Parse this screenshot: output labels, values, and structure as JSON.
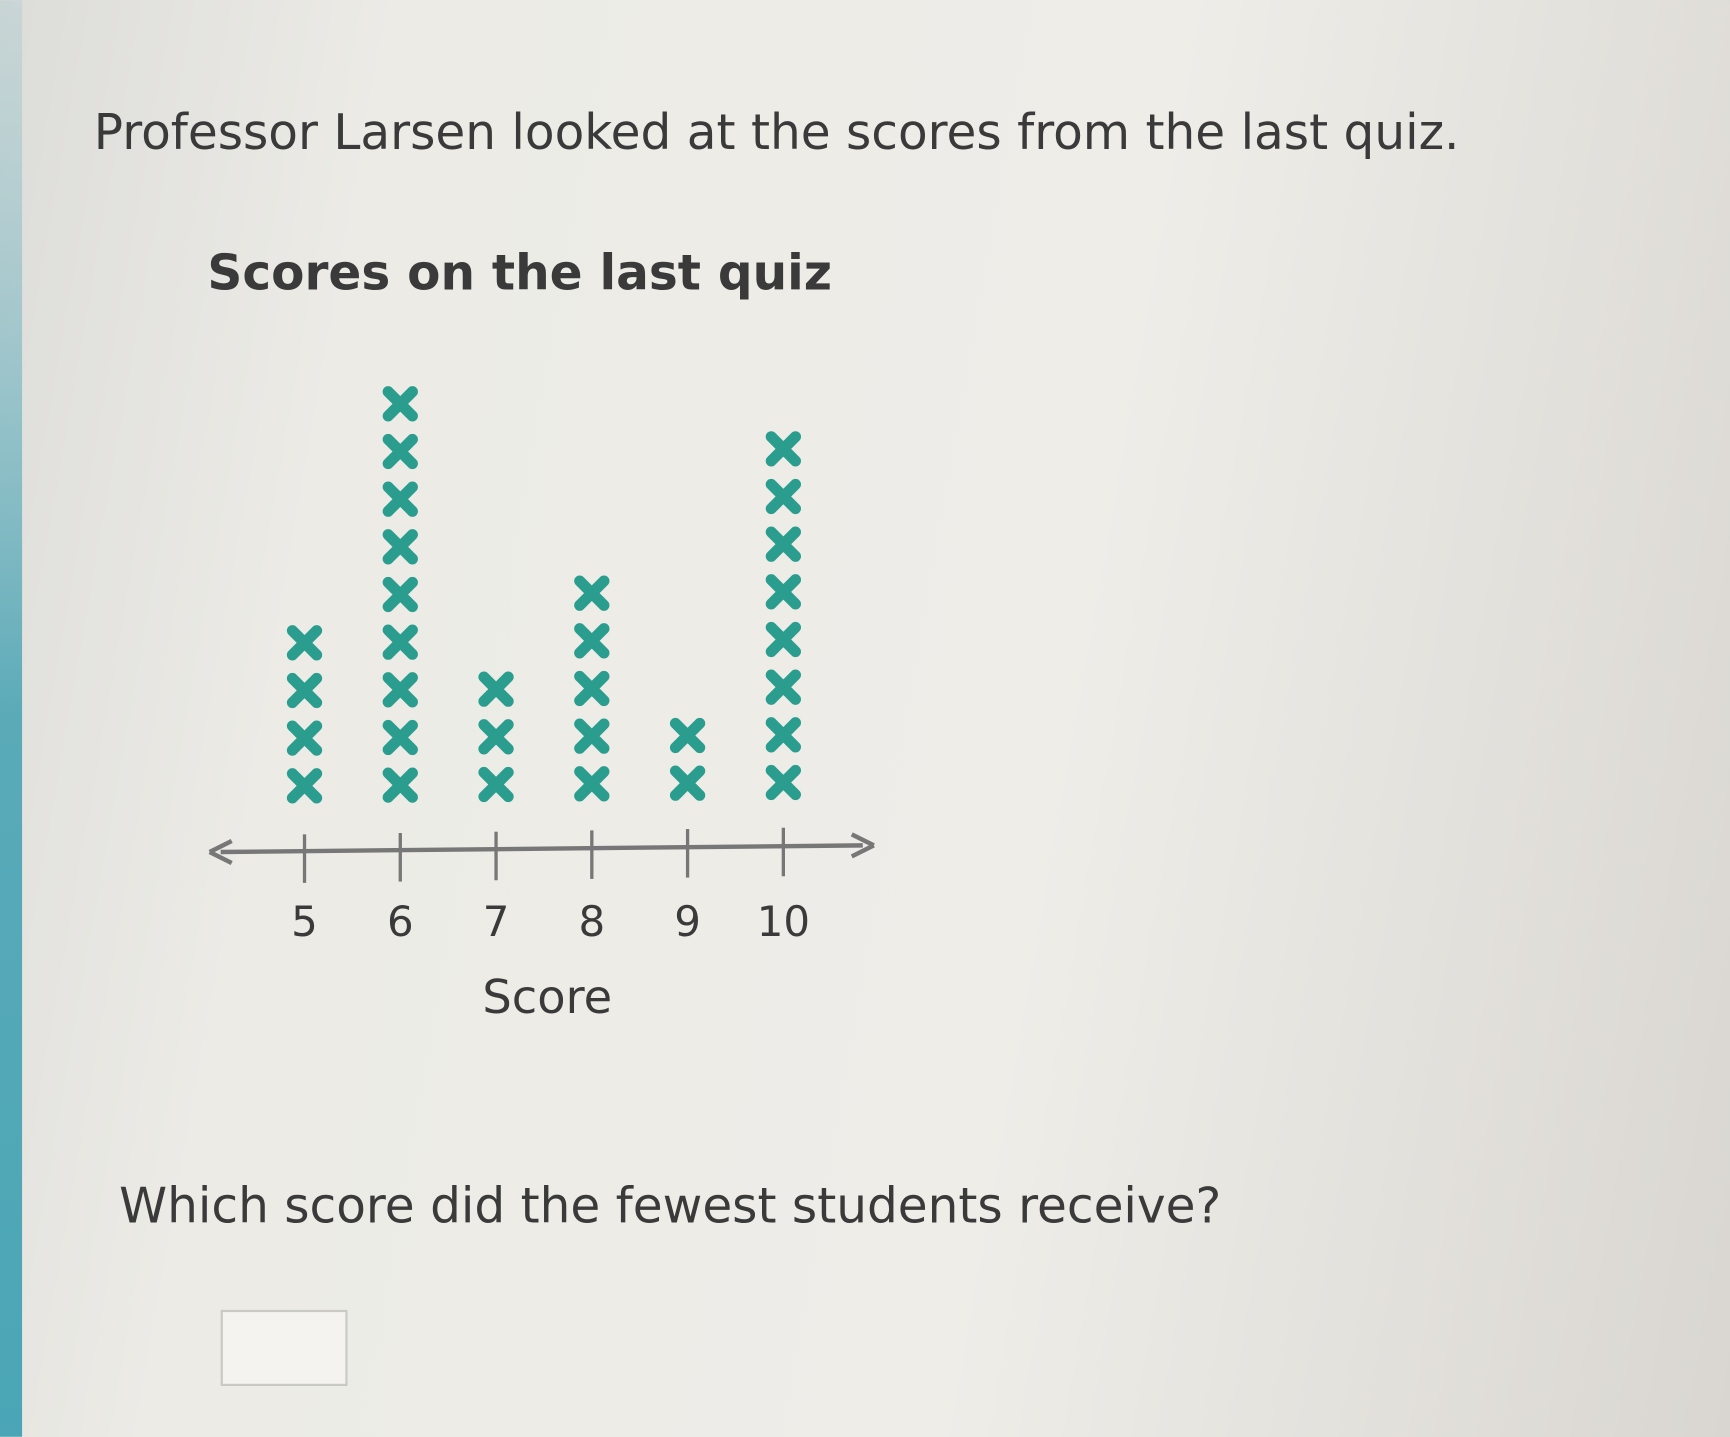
{
  "intro": "Professor Larsen looked at the scores from the last quiz.",
  "question": "Which score did the fewest students receive?",
  "answer_input": {
    "value": ""
  },
  "colors": {
    "mark": "#2a9d8f",
    "axis": "#777777",
    "accent_strip": "#5aaab8"
  },
  "chart_data": {
    "type": "dot-plot",
    "title": "Scores on the last quiz",
    "xlabel": "Score",
    "categories": [
      "5",
      "6",
      "7",
      "8",
      "9",
      "10"
    ],
    "values": [
      4,
      9,
      3,
      5,
      2,
      8
    ],
    "marker": "x"
  }
}
